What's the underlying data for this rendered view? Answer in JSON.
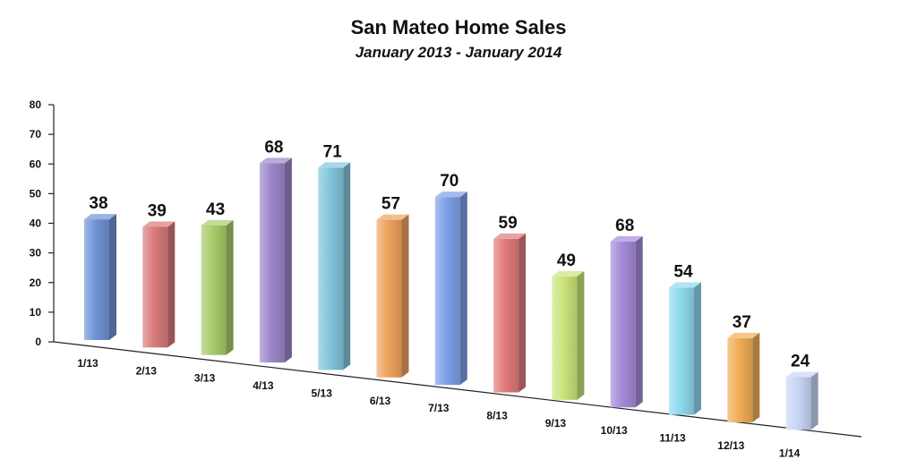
{
  "chart_data": {
    "type": "bar",
    "title": "San Mateo Home Sales",
    "subtitle": "January 2013 - January 2014",
    "xlabel": "",
    "ylabel": "",
    "categories": [
      "1/13",
      "2/13",
      "3/13",
      "4/13",
      "5/13",
      "6/13",
      "7/13",
      "8/13",
      "9/13",
      "10/13",
      "11/13",
      "12/13",
      "1/14"
    ],
    "values": [
      38,
      39,
      43,
      68,
      71,
      57,
      70,
      59,
      49,
      68,
      54,
      37,
      24
    ],
    "data_labels": [
      "38",
      "39",
      "43",
      "68",
      "71",
      "57",
      "70",
      "59",
      "49",
      "68",
      "54",
      "37",
      "24"
    ],
    "ylim": [
      0,
      80
    ],
    "yticks": [
      0,
      10,
      20,
      30,
      40,
      50,
      60,
      70,
      80
    ],
    "ytick_labels": [
      "0",
      "10",
      "20",
      "30",
      "40",
      "50",
      "60",
      "70",
      "80"
    ],
    "grid": false,
    "legend": "none",
    "perspective": "3d-tilted",
    "bar_colors": [
      "#6f93d6",
      "#d97a7a",
      "#a8cc6a",
      "#9b86c9",
      "#82c6dc",
      "#eea25e",
      "#7ea0e6",
      "#e07a7a",
      "#cbe47a",
      "#a48ad8",
      "#8fd8ee",
      "#f0ae54",
      "#c8d6f6"
    ]
  }
}
